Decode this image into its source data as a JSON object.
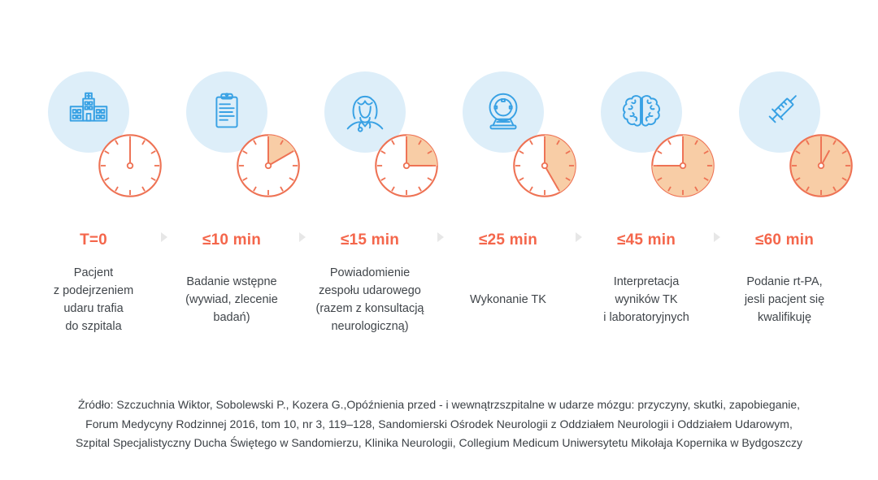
{
  "colors": {
    "clock_stroke": "#ee7254",
    "clock_fill": "#f8cda6",
    "label_orange": "#f4664b",
    "icon_blue": "#38a1e4",
    "circle_blue": "#ddeef9",
    "text_dark": "#40454a",
    "arrow_gray": "#e7e7e7"
  },
  "timeline": {
    "stages": [
      {
        "icon": "hospital-icon",
        "time_label": "T=0",
        "minutes_elapsed": 0,
        "description": "Pacjent\nz podejrzeniem\nudaru trafia\ndo szpitala"
      },
      {
        "icon": "clipboard-icon",
        "time_label": "≤10 min",
        "minutes_elapsed": 10,
        "description": "Badanie wstępne\n(wywiad, zlecenie\nbadań)"
      },
      {
        "icon": "nurse-icon",
        "time_label": "≤15 min",
        "minutes_elapsed": 15,
        "description": "Powiadomienie\nzespołu udarowego\n(razem z konsultacją\nneurologiczną)"
      },
      {
        "icon": "ct-scanner-icon",
        "time_label": "≤25 min",
        "minutes_elapsed": 25,
        "description": "Wykonanie TK"
      },
      {
        "icon": "brain-icon",
        "time_label": "≤45 min",
        "minutes_elapsed": 45,
        "description": "Interpretacja\nwyników TK\ni laboratoryjnych"
      },
      {
        "icon": "syringe-icon",
        "time_label": "≤60 min",
        "minutes_elapsed": 60,
        "description": "Podanie rt-PA,\njesli pacjent się\nkwalifikuję"
      }
    ]
  },
  "source": {
    "lines": [
      "Źródło: Szczuchnia Wiktor, Sobolewski P., Kozera G.,Opóźnienia przed - i wewnątrzszpitalne w udarze mózgu: przyczyny, skutki, zapobieganie,",
      "Forum Medycyny Rodzinnej 2016, tom 10, nr 3, 119–128, Sandomierski Ośrodek Neurologii z Oddziałem Neurologii i Oddziałem Udarowym,",
      "Szpital Specjalistyczny Ducha Świętego w Sandomierzu, Klinika Neurologii, Collegium Medicum Uniwersytetu Mikołaja Kopernika w Bydgoszczy"
    ]
  }
}
